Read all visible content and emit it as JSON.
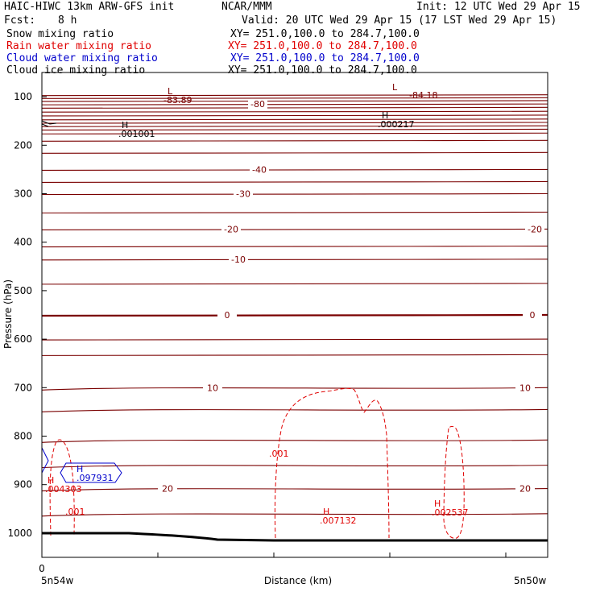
{
  "header": {
    "title": "HAIC-HIWC 13km ARW-GFS init",
    "org": "NCAR/MMM",
    "init": "Init: 12 UTC Wed 29 Apr 15",
    "fcst_label": "Fcst:",
    "fcst_value": "8 h",
    "valid": "Valid: 20 UTC Wed 29 Apr 15 (17 LST Wed 29 Apr 15)",
    "fields": [
      {
        "name": "Snow mixing ratio",
        "xy": "XY= 251.0,100.0 to 284.7,100.0",
        "color": "#000000"
      },
      {
        "name": "Rain water mixing ratio",
        "xy": "XY= 251.0,100.0 to 284.7,100.0",
        "color": "#e00000"
      },
      {
        "name": "Cloud water mixing ratio",
        "xy": "XY= 251.0,100.0 to 284.7,100.0",
        "color": "#0000cc"
      },
      {
        "name": "Cloud ice mixing ratio",
        "xy": "XY= 251.0,100.0 to 284.7,100.0",
        "color": "#000000"
      }
    ]
  },
  "chart_data": {
    "type": "contour cross-section",
    "xlabel": "Distance (km)",
    "ylabel": "Pressure (hPa)",
    "x_tick_labels": [
      "0"
    ],
    "x_end_labels": [
      "5n54w",
      "5n50w"
    ],
    "ylim": [
      1050,
      50
    ],
    "y_ticks": [
      100,
      200,
      300,
      400,
      500,
      600,
      700,
      800,
      900,
      1000
    ],
    "temperature_contours": [
      {
        "value": -80,
        "label": "-80",
        "label_pressure": 115
      },
      {
        "value": -40,
        "label": "-40",
        "label_pressure": 250
      },
      {
        "value": -30,
        "label": "-30",
        "label_pressure": 300
      },
      {
        "value": -20,
        "label": "-20",
        "label_pressure": 373
      },
      {
        "value": -10,
        "label": "-10",
        "label_pressure": 435
      },
      {
        "value": 0,
        "label": "0",
        "label_pressure": 550
      },
      {
        "value": 10,
        "label": "10",
        "label_pressure": 700
      },
      {
        "value": 20,
        "label": "20",
        "label_pressure": 908
      }
    ],
    "extrema": [
      {
        "kind": "L",
        "value": "-83.89",
        "color": "#7a0000"
      },
      {
        "kind": "L",
        "value": "-84.18",
        "color": "#7a0000"
      },
      {
        "kind": "H",
        "value": ".001001",
        "color": "#000000"
      },
      {
        "kind": "H",
        "value": ".000217",
        "color": "#000000"
      },
      {
        "kind": "H",
        "value": ".097931",
        "color": "#0000cc"
      },
      {
        "kind": "H",
        "value": ".004303",
        "color": "#e00000"
      },
      {
        "kind": "H",
        "value": ".007132",
        "color": "#e00000"
      },
      {
        "kind": "H",
        "value": ".002537",
        "color": "#e00000"
      }
    ],
    "rain_contour_labels": [
      ".001",
      ".001"
    ],
    "colors": {
      "temperature": "#7a0000",
      "rain": "#e00000",
      "cloud_water": "#0000cc",
      "ground": "#000000"
    }
  }
}
